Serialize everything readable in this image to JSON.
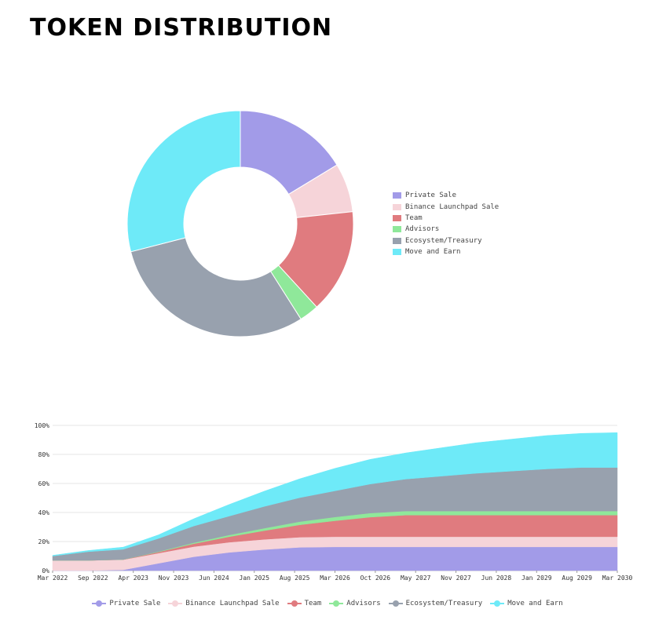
{
  "title": "TOKEN DISTRIBUTION",
  "colors": {
    "Private Sale": "#a29be8",
    "Binance Launchpad Sale": "#f6d4d9",
    "Team": "#e07b7f",
    "Advisors": "#8fe89a",
    "Ecosystem/Treasury": "#98a1ae",
    "Move and Earn": "#6eeaf8"
  },
  "chart_data": [
    {
      "type": "pie",
      "style": "donut",
      "legend_position": "right",
      "labels": [
        "Private Sale",
        "Binance Launchpad Sale",
        "Team",
        "Advisors",
        "Ecosystem/Treasury",
        "Move and Earn"
      ],
      "values": [
        16.3,
        7,
        14.9,
        2.8,
        30,
        29
      ]
    },
    {
      "type": "area",
      "stacked": true,
      "grid": true,
      "legend_position": "bottom",
      "y_tick_labels": [
        "0%",
        "20%",
        "40%",
        "60%",
        "80%",
        "100%"
      ],
      "x_tick_labels": [
        "Mar 2022",
        "Sep 2022",
        "Apr 2023",
        "Nov 2023",
        "Jun 2024",
        "Jan 2025",
        "Aug 2025",
        "Mar 2026",
        "Oct 2026",
        "May 2027",
        "Nov 2027",
        "Jun 2028",
        "Jan 2029",
        "Aug 2029",
        "Mar 2030"
      ],
      "ylim": [
        0,
        100
      ],
      "x": [
        "Mar 2022",
        "Sep 2022",
        "Mar 2023",
        "Sep 2023",
        "Mar 2024",
        "Sep 2024",
        "Mar 2025",
        "Sep 2025",
        "Mar 2026",
        "Sep 2026",
        "Mar 2027",
        "Sep 2027",
        "Mar 2028",
        "Sep 2028",
        "Mar 2029",
        "Sep 2029",
        "Mar 2030"
      ],
      "series": [
        {
          "name": "Private Sale",
          "values": [
            0,
            0,
            0.5,
            5,
            9.5,
            12.5,
            14.5,
            16,
            16.3,
            16.3,
            16.3,
            16.3,
            16.3,
            16.3,
            16.3,
            16.3,
            16.3
          ]
        },
        {
          "name": "Binance Launchpad Sale",
          "values": [
            7,
            7,
            7,
            7,
            7,
            7,
            7,
            7,
            7,
            7,
            7,
            7,
            7,
            7,
            7,
            7,
            7
          ]
        },
        {
          "name": "Team",
          "values": [
            0,
            0,
            0.1,
            0.8,
            2,
            3.8,
            6,
            8.5,
            11,
            13.5,
            14.9,
            14.9,
            14.9,
            14.9,
            14.9,
            14.9,
            14.9
          ]
        },
        {
          "name": "Advisors",
          "values": [
            0,
            0,
            0.05,
            0.3,
            0.7,
            1.2,
            1.7,
            2.2,
            2.6,
            2.8,
            2.8,
            2.8,
            2.8,
            2.8,
            2.8,
            2.8,
            2.8
          ]
        },
        {
          "name": "Ecosystem/Treasury",
          "values": [
            3,
            6,
            7,
            9,
            11.5,
            13,
            15,
            16.5,
            18,
            20,
            22,
            24,
            26,
            27.5,
            29,
            30,
            30
          ]
        },
        {
          "name": "Move and Earn",
          "values": [
            0.5,
            0.8,
            1.5,
            2.5,
            5,
            8,
            10.5,
            13,
            15.5,
            17,
            18,
            19.5,
            21,
            22,
            23,
            23.5,
            24
          ]
        }
      ]
    }
  ]
}
